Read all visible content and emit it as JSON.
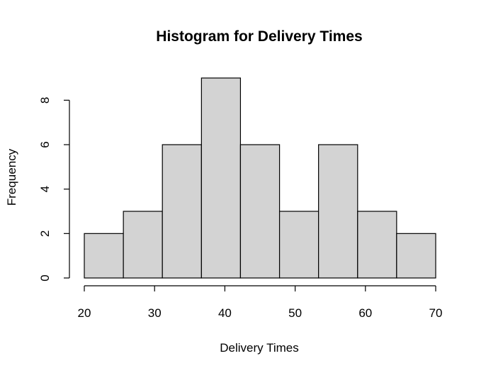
{
  "chart_data": {
    "type": "bar",
    "title": "Histogram for Delivery Times",
    "xlabel": "Delivery Times",
    "ylabel": "Frequency",
    "bin_edges": [
      20,
      25.56,
      31.11,
      36.67,
      42.22,
      47.78,
      53.33,
      58.89,
      64.44,
      70
    ],
    "values": [
      2,
      3,
      6,
      9,
      6,
      3,
      6,
      3,
      2
    ],
    "xlim": [
      20,
      70
    ],
    "ylim": [
      0,
      9
    ],
    "x_ticks": [
      20,
      30,
      40,
      50,
      60,
      70
    ],
    "y_ticks": [
      0,
      2,
      4,
      6,
      8
    ],
    "grid": false,
    "colors": {
      "bar_fill": "#d3d3d3",
      "bar_stroke": "#000000"
    }
  }
}
